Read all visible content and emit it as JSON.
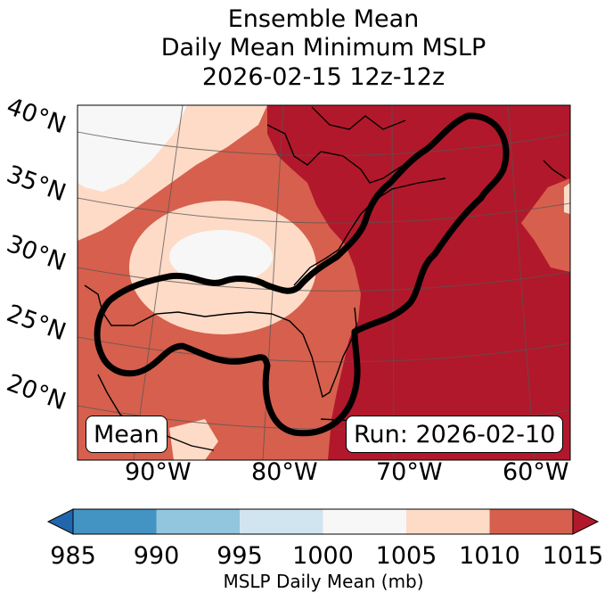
{
  "title": {
    "line1": "Ensemble Mean",
    "line2": "Daily Mean Minimum MSLP",
    "line3": "2026-02-15 12z-12z"
  },
  "map": {
    "lat_labels": [
      "40°N",
      "35°N",
      "30°N",
      "25°N",
      "20°N"
    ],
    "lon_labels": [
      "90°W",
      "80°W",
      "70°W",
      "60°W"
    ],
    "mean_label": "Mean",
    "run_label": "Run: 2026-02-10",
    "fill_colors": {
      "c1000_1005": "#f7f7f7",
      "c1005_1010": "#fddbc7",
      "c1010_1015": "#d6604d",
      "c1015_plus": "#b2182b"
    }
  },
  "colorbar": {
    "ticks": [
      "985",
      "990",
      "995",
      "1000",
      "1005",
      "1010",
      "1015"
    ],
    "colors": [
      "#2166ac",
      "#4393c3",
      "#92c5de",
      "#d1e5f0",
      "#f7f7f7",
      "#fddbc7",
      "#d6604d",
      "#b2182b"
    ],
    "label": "MSLP Daily Mean (mb)"
  }
}
